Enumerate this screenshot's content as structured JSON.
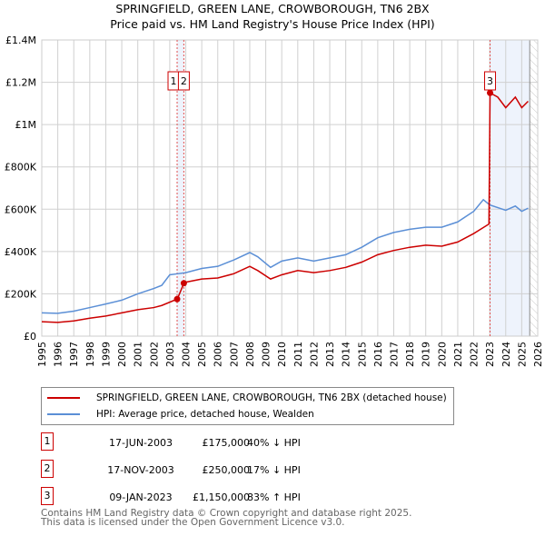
{
  "chart_data": {
    "type": "line",
    "title": "SPRINGFIELD, GREEN LANE, CROWBOROUGH, TN6 2BX",
    "subtitle": "Price paid vs. HM Land Registry's House Price Index (HPI)",
    "xlim": [
      1995,
      2026
    ],
    "ylim": [
      0,
      1400000
    ],
    "xticks": [
      "1995",
      "1996",
      "1997",
      "1998",
      "1999",
      "2000",
      "2001",
      "2002",
      "2003",
      "2004",
      "2005",
      "2006",
      "2007",
      "2008",
      "2009",
      "2010",
      "2011",
      "2012",
      "2013",
      "2014",
      "2015",
      "2016",
      "2017",
      "2018",
      "2019",
      "2020",
      "2021",
      "2022",
      "2023",
      "2024",
      "2025",
      "2026"
    ],
    "yticks": [
      {
        "v": 0,
        "label": "£0"
      },
      {
        "v": 200000,
        "label": "£200K"
      },
      {
        "v": 400000,
        "label": "£400K"
      },
      {
        "v": 600000,
        "label": "£600K"
      },
      {
        "v": 800000,
        "label": "£800K"
      },
      {
        "v": 1000000,
        "label": "£1M"
      },
      {
        "v": 1200000,
        "label": "£1.2M"
      },
      {
        "v": 1400000,
        "label": "£1.4M"
      }
    ],
    "series": [
      {
        "name": "SPRINGFIELD, GREEN LANE, CROWBOROUGH, TN6 2BX (detached house)",
        "color": "#cc0000",
        "x": [
          1995,
          1996,
          1997,
          1998,
          1999,
          2000,
          2001,
          2002,
          2002.5,
          2003.46,
          2003.5,
          2003.88,
          2004,
          2005,
          2006,
          2007,
          2008,
          2008.5,
          2009.3,
          2010,
          2011,
          2012,
          2013,
          2014,
          2015,
          2016,
          2017,
          2018,
          2019,
          2020,
          2021,
          2022,
          2022.95,
          2023.02,
          2023.5,
          2024,
          2024.6,
          2025,
          2025.4
        ],
        "y": [
          68000,
          65000,
          72000,
          85000,
          95000,
          110000,
          125000,
          135000,
          145000,
          175000,
          180000,
          250000,
          255000,
          270000,
          275000,
          295000,
          330000,
          310000,
          270000,
          290000,
          310000,
          300000,
          310000,
          325000,
          350000,
          385000,
          405000,
          420000,
          430000,
          425000,
          445000,
          485000,
          530000,
          1150000,
          1130000,
          1080000,
          1130000,
          1080000,
          1110000
        ]
      },
      {
        "name": "HPI: Average price, detached house, Wealden",
        "color": "#5b8fd6",
        "x": [
          1995,
          1996,
          1997,
          1998,
          1999,
          2000,
          2001,
          2002,
          2002.5,
          2003,
          2003.5,
          2004,
          2005,
          2006,
          2007,
          2008,
          2008.5,
          2009.3,
          2010,
          2011,
          2012,
          2013,
          2014,
          2015,
          2016,
          2017,
          2018,
          2019,
          2020,
          2021,
          2022,
          2022.6,
          2023,
          2024,
          2024.6,
          2025,
          2025.4
        ],
        "y": [
          110000,
          108000,
          118000,
          135000,
          152000,
          170000,
          200000,
          225000,
          240000,
          290000,
          295000,
          300000,
          320000,
          330000,
          360000,
          395000,
          375000,
          325000,
          355000,
          370000,
          355000,
          370000,
          385000,
          420000,
          465000,
          490000,
          505000,
          515000,
          515000,
          540000,
          590000,
          645000,
          620000,
          595000,
          615000,
          590000,
          605000
        ]
      }
    ],
    "sales": [
      {
        "id": "1",
        "x": 2003.46,
        "y": 175000,
        "date": "17-JUN-2003",
        "price": "£175,000",
        "hpi": "40% ↓ HPI"
      },
      {
        "id": "2",
        "x": 2003.88,
        "y": 250000,
        "date": "17-NOV-2003",
        "price": "£250,000",
        "hpi": "17% ↓ HPI"
      },
      {
        "id": "3",
        "x": 2023.02,
        "y": 1150000,
        "date": "09-JAN-2023",
        "price": "£1,150,000",
        "hpi": "83% ↑ HPI"
      }
    ],
    "shaded_from": 2023.02,
    "hatched_from": 2025.5
  },
  "legend": {
    "red": "SPRINGFIELD, GREEN LANE, CROWBOROUGH, TN6 2BX (detached house)",
    "blue": "HPI: Average price, detached house, Wealden"
  },
  "footer": {
    "line1": "Contains HM Land Registry data © Crown copyright and database right 2025.",
    "line2": "This data is licensed under the Open Government Licence v3.0."
  }
}
